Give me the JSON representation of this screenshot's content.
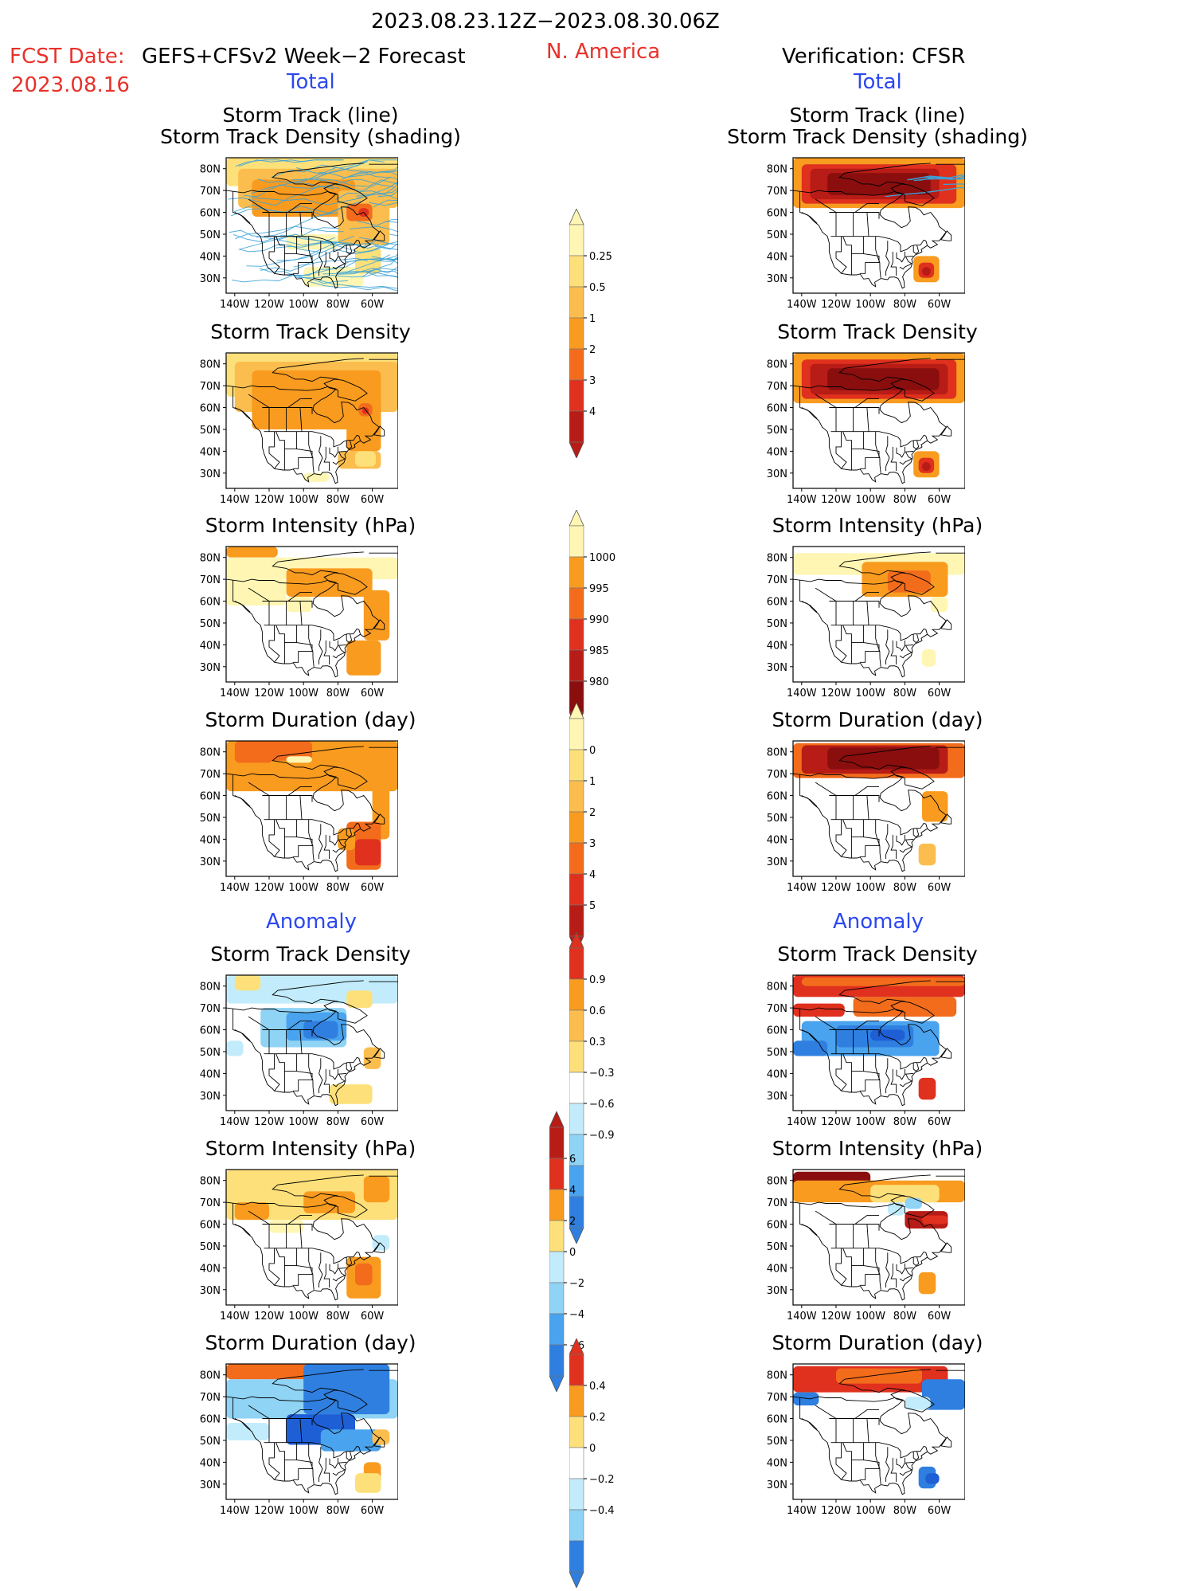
{
  "header": {
    "date_range": "2023.08.23.12Z−2023.08.30.06Z",
    "fcst_label": "FCST Date:",
    "fcst_system": "GEFS+CFSv2 Week−2 Forecast",
    "fcst_date": "2023.08.16",
    "region": "N. America",
    "verification": "Verification: CFSR",
    "total_left": "Total",
    "total_right": "Total",
    "anomaly_left": "Anomaly",
    "anomaly_right": "Anomaly"
  },
  "titles": {
    "track_line": "Storm Track (line)",
    "track_shading": "Storm Track Density (shading)",
    "density": "Storm Track Density",
    "intensity": "Storm Intensity (hPa)",
    "duration": "Storm Duration (day)"
  },
  "axes": {
    "lon_labels": [
      "140W",
      "120W",
      "100W",
      "80W",
      "60W"
    ],
    "lat_labels": [
      "80N",
      "70N",
      "60N",
      "50N",
      "40N",
      "30N"
    ]
  },
  "colors": {
    "pale_yellow": "#fff6b3",
    "yellow": "#fde07a",
    "light_orange": "#fbbe4e",
    "orange": "#f99b1f",
    "dark_orange": "#f26c1c",
    "red": "#e0301e",
    "dark_red": "#b71c16",
    "maroon": "#8a0e0e",
    "pale_blue": "#c2ecfb",
    "light_blue": "#8fd3f5",
    "blue": "#4aa3ee",
    "mid_blue": "#2f7fe0",
    "deep_blue": "#1e5fd6",
    "track_line": "#3aa2d8"
  },
  "chart_data": [
    {
      "type": "heatmap",
      "name": "colorbar_density_total",
      "levels": [
        "0.25",
        "0.5",
        "1",
        "2",
        "3",
        "4"
      ]
    },
    {
      "type": "heatmap",
      "name": "colorbar_intensity_total",
      "levels": [
        "1000",
        "995",
        "990",
        "985",
        "980"
      ]
    },
    {
      "type": "heatmap",
      "name": "colorbar_duration_total",
      "levels": [
        "0",
        "1",
        "2",
        "3",
        "4",
        "5"
      ]
    },
    {
      "type": "heatmap",
      "name": "colorbar_density_anomaly",
      "levels": [
        "0.9",
        "0.6",
        "0.3",
        "−0.3",
        "−0.6",
        "−0.9"
      ]
    },
    {
      "type": "heatmap",
      "name": "colorbar_intensity_anomaly",
      "levels": [
        "6",
        "4",
        "2",
        "0",
        "−2",
        "−4",
        "−6"
      ]
    },
    {
      "type": "heatmap",
      "name": "colorbar_duration_anomaly",
      "levels": [
        "0.4",
        "0.2",
        "0",
        "−0.2",
        "−0.4"
      ]
    }
  ]
}
